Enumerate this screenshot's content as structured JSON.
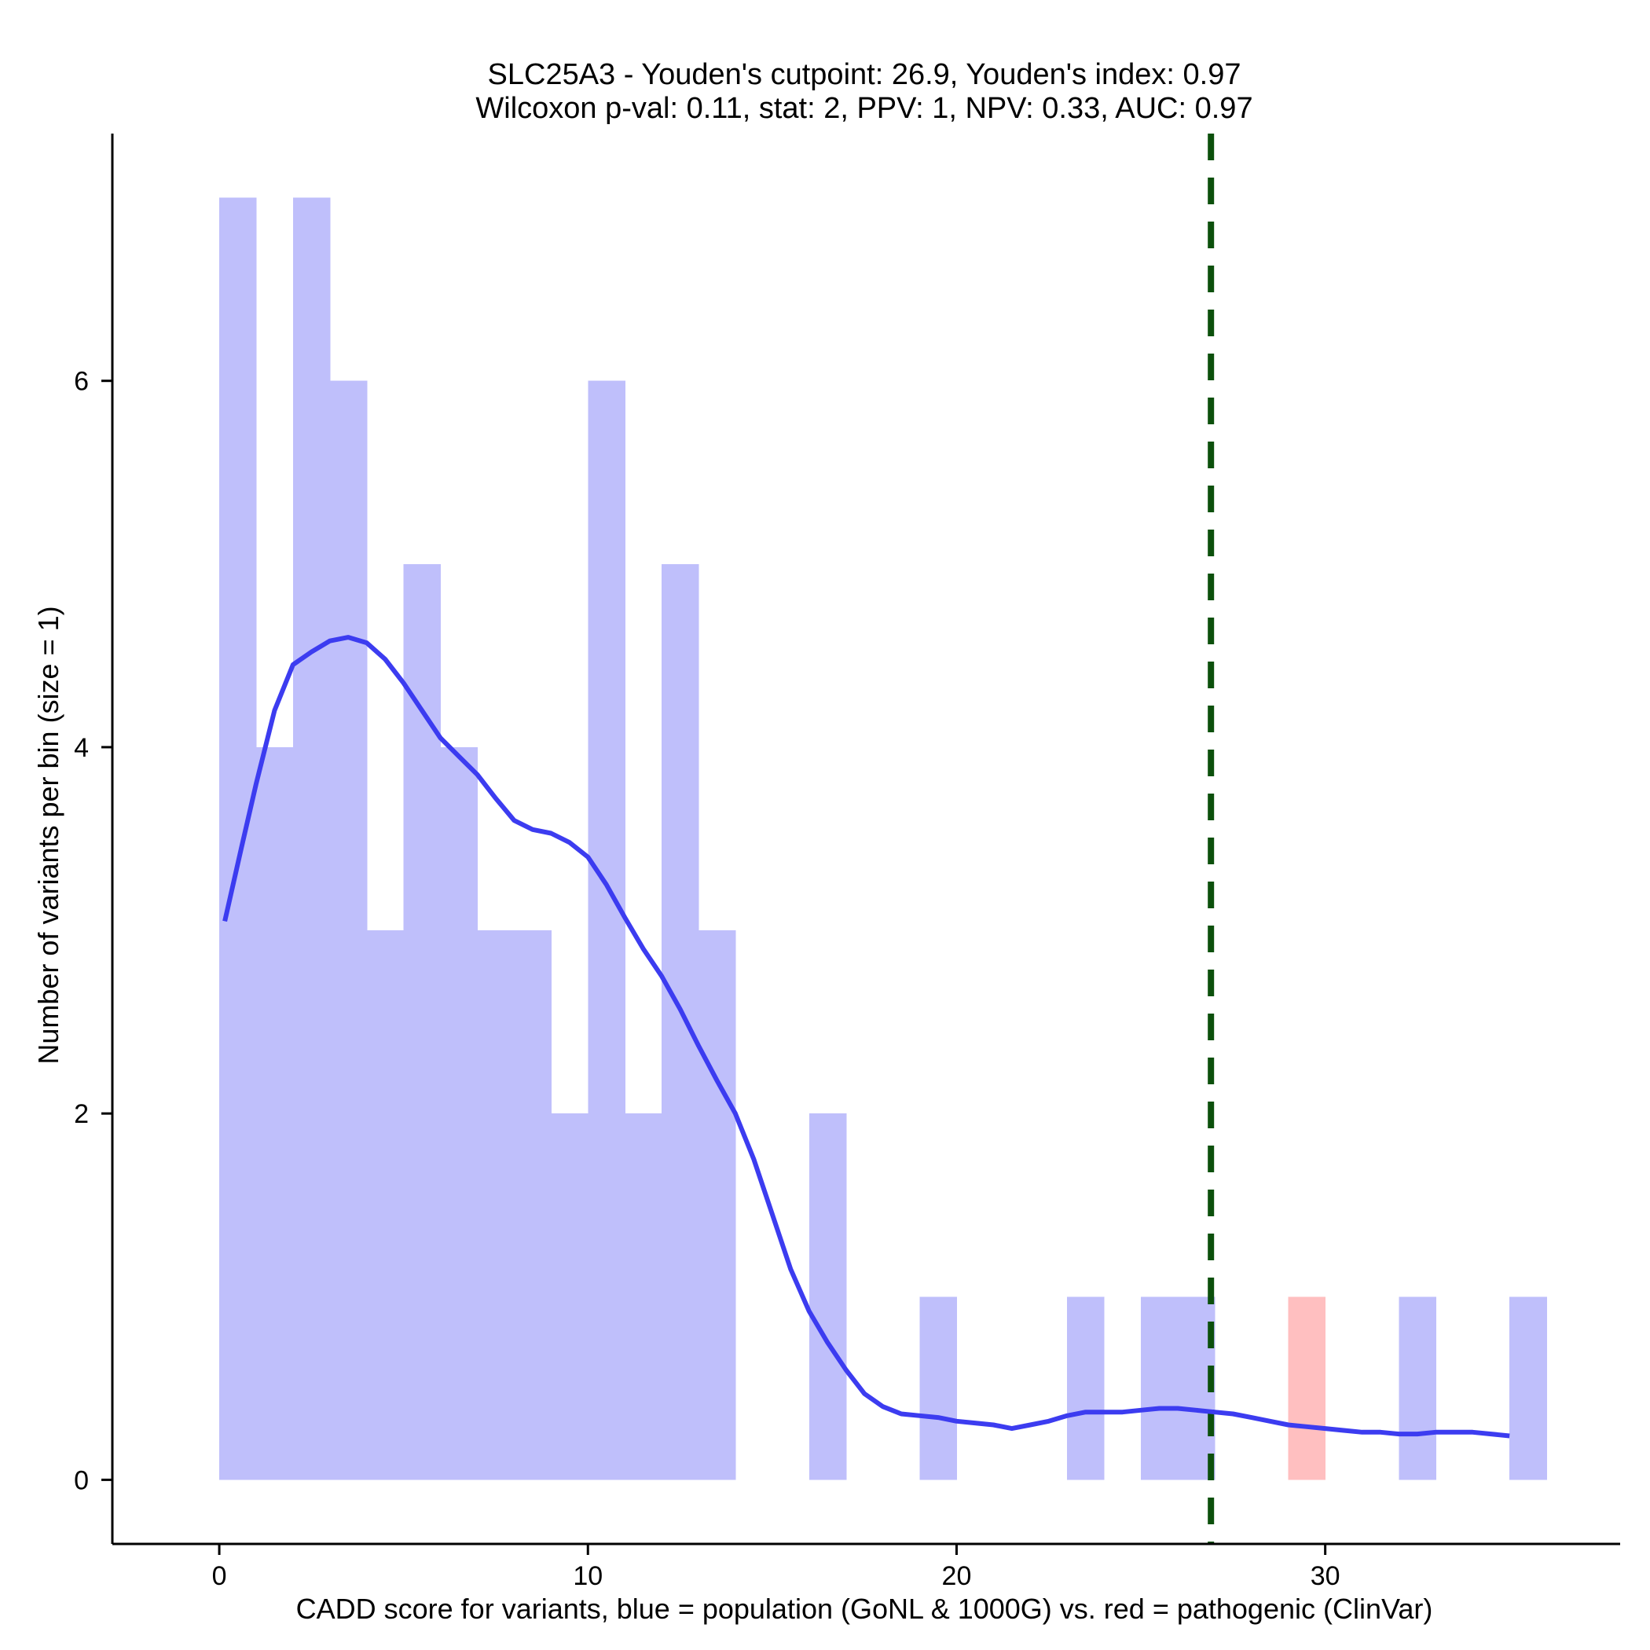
{
  "chart_data": {
    "type": "histogram",
    "title_line1": "SLC25A3 - Youden's cutpoint: 26.9, Youden's index: 0.97",
    "title_line2": "Wilcoxon p-val: 0.11, stat: 2, PPV: 1, NPV: 0.33, AUC: 0.97",
    "xlabel": "CADD score for variants, blue = population (GoNL & 1000G) vs. red = pathogenic (ClinVar)",
    "ylabel": "Number of variants per bin (size = 1)",
    "xlim": [
      -2.9,
      38.0
    ],
    "ylim": [
      -0.35,
      7.35
    ],
    "x_ticks": [
      0,
      10,
      20,
      30
    ],
    "x_tick_labels": [
      "0",
      "10",
      "20",
      "30"
    ],
    "y_ticks": [
      0,
      2,
      4,
      6
    ],
    "y_tick_labels": [
      "0",
      "2",
      "4",
      "6"
    ],
    "bin_width": 1,
    "cutpoint": 26.9,
    "colors": {
      "population": "#bfbffb",
      "pathogenic": "#ffbfc0",
      "density": "#3c3cf0",
      "cutpoint": "#0c500c"
    },
    "series": [
      {
        "name": "population (GoNL & 1000G)",
        "bins": [
          {
            "start": 0,
            "count": 7
          },
          {
            "start": 1,
            "count": 4
          },
          {
            "start": 2,
            "count": 7
          },
          {
            "start": 3,
            "count": 6
          },
          {
            "start": 4,
            "count": 3
          },
          {
            "start": 5,
            "count": 5
          },
          {
            "start": 6,
            "count": 4
          },
          {
            "start": 7,
            "count": 3
          },
          {
            "start": 8,
            "count": 3
          },
          {
            "start": 9,
            "count": 2
          },
          {
            "start": 10,
            "count": 6
          },
          {
            "start": 11,
            "count": 2
          },
          {
            "start": 12,
            "count": 5
          },
          {
            "start": 13,
            "count": 3
          },
          {
            "start": 16,
            "count": 2
          },
          {
            "start": 19,
            "count": 1
          },
          {
            "start": 23,
            "count": 1
          },
          {
            "start": 25,
            "count": 1
          },
          {
            "start": 26,
            "count": 1
          },
          {
            "start": 32,
            "count": 1
          },
          {
            "start": 35,
            "count": 1
          }
        ]
      },
      {
        "name": "pathogenic (ClinVar)",
        "bins": [
          {
            "start": 29,
            "count": 1
          }
        ]
      }
    ],
    "density_curve": [
      [
        0.15,
        3.05
      ],
      [
        0.6,
        3.45
      ],
      [
        1.0,
        3.8
      ],
      [
        1.5,
        4.2
      ],
      [
        2.0,
        4.45
      ],
      [
        2.5,
        4.52
      ],
      [
        3.0,
        4.58
      ],
      [
        3.5,
        4.6
      ],
      [
        4.0,
        4.57
      ],
      [
        4.5,
        4.48
      ],
      [
        5.0,
        4.35
      ],
      [
        5.5,
        4.2
      ],
      [
        6.0,
        4.05
      ],
      [
        6.5,
        3.95
      ],
      [
        7.0,
        3.85
      ],
      [
        7.5,
        3.72
      ],
      [
        8.0,
        3.6
      ],
      [
        8.5,
        3.55
      ],
      [
        9.0,
        3.53
      ],
      [
        9.5,
        3.48
      ],
      [
        10.0,
        3.4
      ],
      [
        10.5,
        3.25
      ],
      [
        11.0,
        3.07
      ],
      [
        11.5,
        2.9
      ],
      [
        12.0,
        2.75
      ],
      [
        12.5,
        2.57
      ],
      [
        13.0,
        2.37
      ],
      [
        13.5,
        2.18
      ],
      [
        14.0,
        2.0
      ],
      [
        14.5,
        1.75
      ],
      [
        15.0,
        1.45
      ],
      [
        15.5,
        1.15
      ],
      [
        16.0,
        0.92
      ],
      [
        16.5,
        0.75
      ],
      [
        17.0,
        0.6
      ],
      [
        17.5,
        0.47
      ],
      [
        18.0,
        0.4
      ],
      [
        18.5,
        0.36
      ],
      [
        19.0,
        0.35
      ],
      [
        19.5,
        0.34
      ],
      [
        20.0,
        0.32
      ],
      [
        20.5,
        0.31
      ],
      [
        21.0,
        0.3
      ],
      [
        21.5,
        0.28
      ],
      [
        22.0,
        0.3
      ],
      [
        22.5,
        0.32
      ],
      [
        23.0,
        0.35
      ],
      [
        23.5,
        0.37
      ],
      [
        24.0,
        0.37
      ],
      [
        24.5,
        0.37
      ],
      [
        25.0,
        0.38
      ],
      [
        25.5,
        0.39
      ],
      [
        26.0,
        0.39
      ],
      [
        26.5,
        0.38
      ],
      [
        27.0,
        0.37
      ],
      [
        27.5,
        0.36
      ],
      [
        28.0,
        0.34
      ],
      [
        28.5,
        0.32
      ],
      [
        29.0,
        0.3
      ],
      [
        29.5,
        0.29
      ],
      [
        30.0,
        0.28
      ],
      [
        30.5,
        0.27
      ],
      [
        31.0,
        0.26
      ],
      [
        31.5,
        0.26
      ],
      [
        32.0,
        0.25
      ],
      [
        32.5,
        0.25
      ],
      [
        33.0,
        0.26
      ],
      [
        33.5,
        0.26
      ],
      [
        34.0,
        0.26
      ],
      [
        34.5,
        0.25
      ],
      [
        35.0,
        0.24
      ]
    ]
  }
}
